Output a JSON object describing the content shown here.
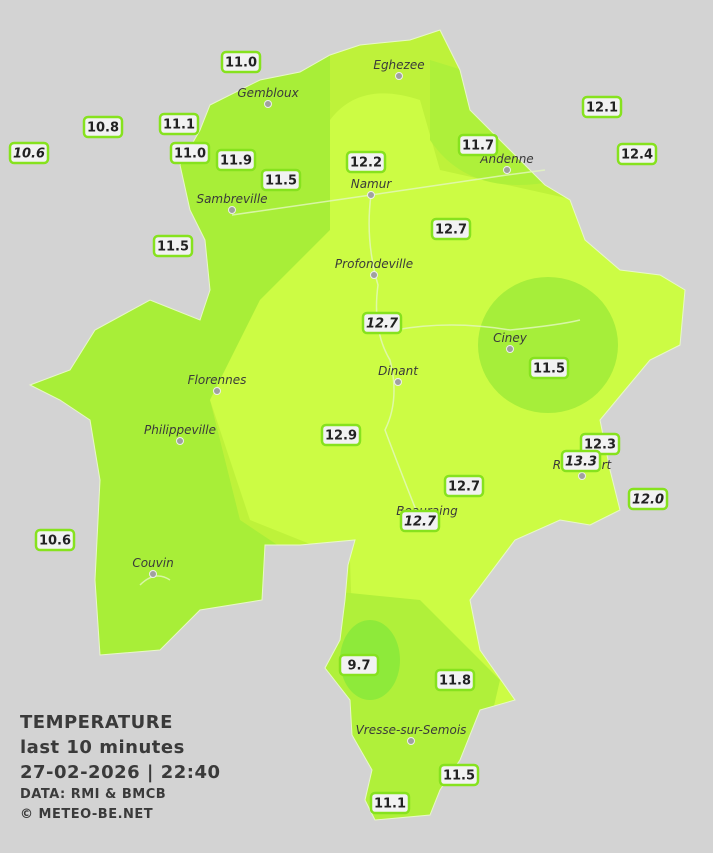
{
  "title": "TEMPERATURE",
  "subtitle": "last 10 minutes",
  "datetime": "27-02-2026  |  22:40",
  "source": "DATA: RMI & BMCB",
  "copyright": "© METEO-BE.NET",
  "towns": [
    {
      "name": "Eghezee"
    },
    {
      "name": "Gembloux"
    },
    {
      "name": "Andenne"
    },
    {
      "name": "Namur"
    },
    {
      "name": "Sambreville"
    },
    {
      "name": "Profondeville"
    },
    {
      "name": "Ciney"
    },
    {
      "name": "Dinant"
    },
    {
      "name": "Florennes"
    },
    {
      "name": "Philippeville"
    },
    {
      "name": "Rochefort"
    },
    {
      "name": "Beauraing"
    },
    {
      "name": "Couvin"
    },
    {
      "name": "Vresse-sur-Semois"
    }
  ],
  "stations": [
    {
      "label": "11.0",
      "italic": false
    },
    {
      "label": "10.8",
      "italic": false
    },
    {
      "label": "11.1",
      "italic": false
    },
    {
      "label": "10.6",
      "italic": true
    },
    {
      "label": "11.0",
      "italic": false
    },
    {
      "label": "11.9",
      "italic": false
    },
    {
      "label": "11.5",
      "italic": false
    },
    {
      "label": "12.2",
      "italic": false
    },
    {
      "label": "11.7",
      "italic": false
    },
    {
      "label": "12.1",
      "italic": false
    },
    {
      "label": "12.4",
      "italic": false
    },
    {
      "label": "11.5",
      "italic": false
    },
    {
      "label": "12.7",
      "italic": false
    },
    {
      "label": "12.7",
      "italic": true
    },
    {
      "label": "11.5",
      "italic": false
    },
    {
      "label": "12.9",
      "italic": false
    },
    {
      "label": "12.3",
      "italic": false
    },
    {
      "label": "13.3",
      "italic": true
    },
    {
      "label": "12.7",
      "italic": false
    },
    {
      "label": "12.0",
      "italic": true
    },
    {
      "label": "12.7",
      "italic": true
    },
    {
      "label": "10.6",
      "italic": false
    },
    {
      "label": "9.7",
      "italic": false
    },
    {
      "label": "11.8",
      "italic": false
    },
    {
      "label": "11.5",
      "italic": false
    },
    {
      "label": "11.1",
      "italic": false
    }
  ]
}
